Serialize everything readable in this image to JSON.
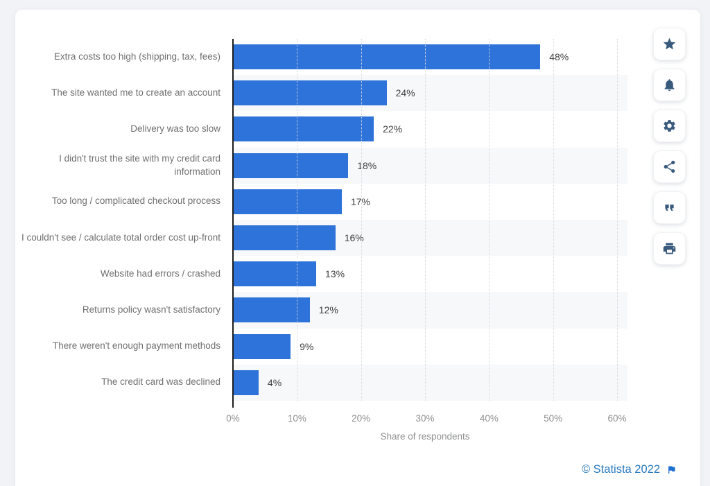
{
  "page": {
    "background": "#f1f3f7",
    "card_background": "#ffffff"
  },
  "chart_data": {
    "type": "bar",
    "orientation": "horizontal",
    "title": "",
    "categories": [
      "Extra costs too high (shipping, tax, fees)",
      "The site wanted me to create an account",
      "Delivery was too slow",
      "I didn't trust the site with my credit card information",
      "Too long / complicated checkout process",
      "I couldn't see / calculate total order cost up-front",
      "Website had errors / crashed",
      "Returns policy wasn't satisfactory",
      "There weren't enough payment methods",
      "The credit card was declined"
    ],
    "values": [
      48,
      24,
      22,
      18,
      17,
      16,
      13,
      12,
      9,
      4
    ],
    "value_labels": [
      "48%",
      "24%",
      "22%",
      "18%",
      "17%",
      "16%",
      "13%",
      "12%",
      "9%",
      "4%"
    ],
    "xlabel": "Share of respondents",
    "xlim": [
      0,
      60
    ],
    "x_ticks": [
      "0%",
      "10%",
      "20%",
      "30%",
      "40%",
      "50%",
      "60%"
    ],
    "bar_color": "#2e73da",
    "row_stripe_color": "#f7f8fa",
    "grid": "vertical-dotted",
    "legend_position": "none"
  },
  "toolbar": {
    "buttons": [
      {
        "name": "favorite",
        "icon": "star-icon"
      },
      {
        "name": "notifications",
        "icon": "bell-icon"
      },
      {
        "name": "settings",
        "icon": "gear-icon"
      },
      {
        "name": "share",
        "icon": "share-icon"
      },
      {
        "name": "cite",
        "icon": "quote-icon"
      },
      {
        "name": "print",
        "icon": "print-icon"
      }
    ]
  },
  "footer": {
    "copyright": "© Statista 2022",
    "flag_icon": "flag-icon",
    "link_color": "#2878be"
  }
}
